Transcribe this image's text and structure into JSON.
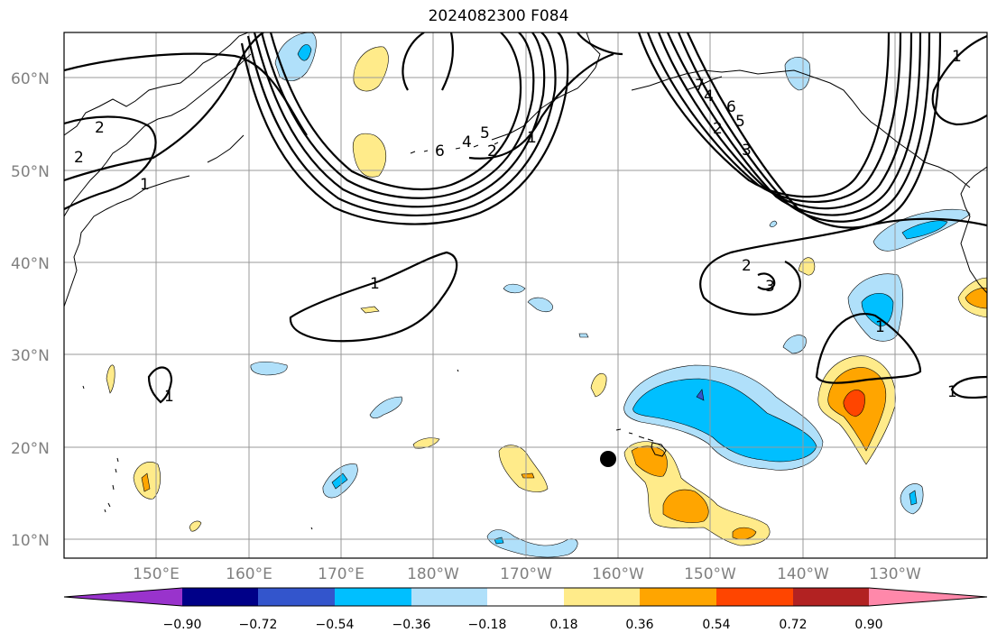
{
  "title": "2024082300 F084",
  "colors": {
    "c_m090": "#9933cc",
    "c_m072": "#000088",
    "c_m054": "#3355cc",
    "c_m036": "#00bfff",
    "c_m018": "#b0e0fa",
    "c_zero": "#ffffff",
    "c_p018": "#ffeb8a",
    "c_p036": "#ffa500",
    "c_p054": "#ff4500",
    "c_p072": "#b22222",
    "c_p090": "#ff88aa",
    "grid": "#999999",
    "contour": "#000000",
    "marker": "#000000"
  },
  "map": {
    "lon_range": "140E-117W",
    "lat_range": "8N-65N",
    "lat_labels": [
      "60°N",
      "50°N",
      "40°N",
      "30°N",
      "20°N",
      "10°N"
    ],
    "lon_labels": [
      "150°E",
      "160°E",
      "170°E",
      "180°W",
      "170°W",
      "160°W",
      "150°W",
      "140°W",
      "130°W"
    ],
    "contour_labels": [
      "2",
      "1",
      "6",
      "4",
      "5",
      "1",
      "2",
      "1",
      "2",
      "3",
      "1",
      "1",
      "1",
      "7",
      "4",
      "6",
      "5",
      "2",
      "3",
      "1",
      "2"
    ],
    "marker": "black-dot"
  },
  "colorbar": {
    "levels": [
      "−0.90",
      "−0.72",
      "−0.54",
      "−0.36",
      "−0.18",
      "0.18",
      "0.36",
      "0.54",
      "0.72",
      "0.90"
    ],
    "colors": [
      "#9933cc",
      "#000088",
      "#3355cc",
      "#00bfff",
      "#b0e0fa",
      "#ffffff",
      "#ffeb8a",
      "#ffa500",
      "#ff4500",
      "#b22222",
      "#ff88aa"
    ]
  }
}
